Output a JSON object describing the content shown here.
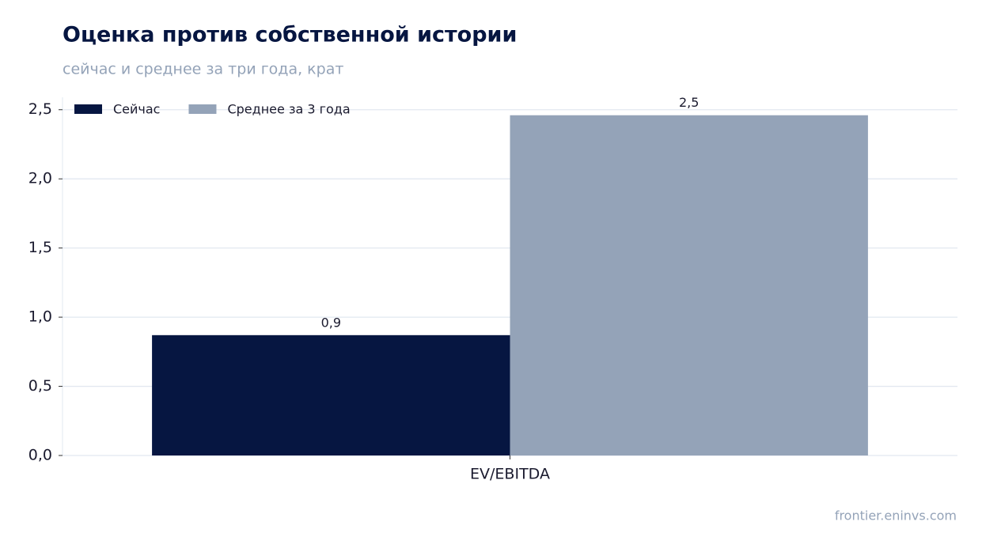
{
  "chart_data": {
    "type": "bar",
    "title": "Оценка против собственной истории",
    "subtitle": "сейчас и среднее за три года, крат",
    "categories": [
      "EV/EBITDA"
    ],
    "series": [
      {
        "name": "Сейчас",
        "color": "#061641",
        "values": [
          0.87
        ],
        "value_labels": [
          "0,9"
        ]
      },
      {
        "name": "Среднее за 3 года",
        "color": "#94a3b8",
        "values": [
          2.46
        ],
        "value_labels": [
          "2,5"
        ]
      }
    ],
    "ylim": [
      0,
      2.59
    ],
    "yticks": [
      {
        "value": 0,
        "label": "0,0"
      },
      {
        "value": 0.5,
        "label": "0,5"
      },
      {
        "value": 1,
        "label": "1,0"
      },
      {
        "value": 1.5,
        "label": "1,5"
      },
      {
        "value": 2,
        "label": "2,0"
      },
      {
        "value": 2.5,
        "label": "2,5"
      }
    ],
    "grid": true,
    "legend": "upper left",
    "source": "frontier.eninvs.com"
  }
}
